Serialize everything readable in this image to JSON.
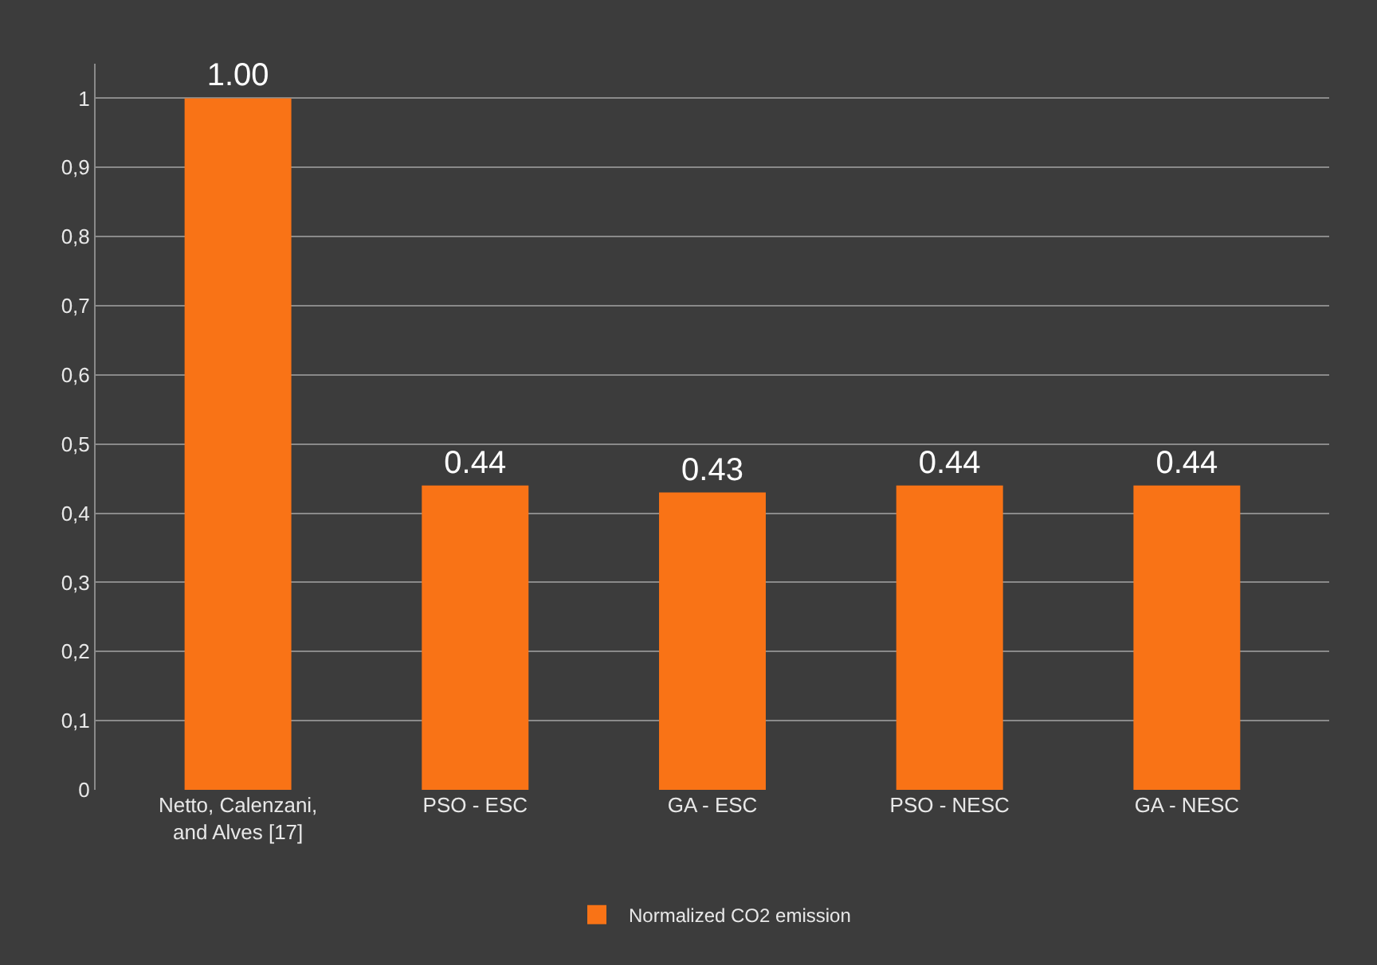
{
  "chart_data": {
    "type": "bar",
    "categories": [
      "Netto, Calenzani, and Alves [17]",
      "PSO - ESC",
      "GA - ESC",
      "PSO - NESC",
      "GA - NESC"
    ],
    "series": [
      {
        "name": "Normalized CO2 emission",
        "color": "#f97316",
        "values": [
          1.0,
          0.44,
          0.43,
          0.44,
          0.44
        ],
        "value_labels": [
          "1.00",
          "0.44",
          "0.43",
          "0.44",
          "0.44"
        ]
      }
    ],
    "ylim": [
      0,
      1.05
    ],
    "yticks": [
      0,
      {
        "value": 0.1,
        "label": "0,1"
      },
      {
        "value": 0.2,
        "label": "0,2"
      },
      {
        "value": 0.3,
        "label": "0,3"
      },
      {
        "value": 0.4,
        "label": "0,4"
      },
      {
        "value": 0.5,
        "label": "0,5"
      },
      {
        "value": 0.6,
        "label": "0,6"
      },
      {
        "value": 0.7,
        "label": "0,7"
      },
      {
        "value": 0.8,
        "label": "0,8"
      },
      {
        "value": 0.9,
        "label": "0,9"
      },
      1
    ],
    "grid": "y",
    "legend": "bottom"
  }
}
